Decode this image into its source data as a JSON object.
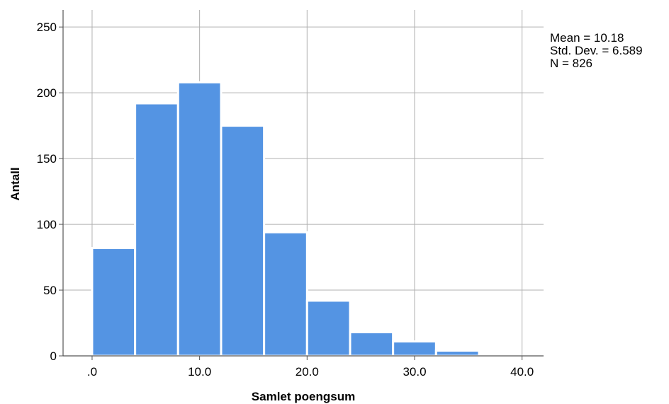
{
  "chart_data": {
    "type": "bar",
    "histogram": true,
    "title": "",
    "xlabel": "Samlet poengsum",
    "ylabel": "Antall",
    "bin_edges": [
      0,
      4,
      8,
      12,
      16,
      20,
      24,
      28,
      32,
      36
    ],
    "values": [
      82,
      192,
      208,
      175,
      94,
      42,
      18,
      11,
      4
    ],
    "xlim": [
      -2.7,
      42
    ],
    "ylim": [
      0,
      263
    ],
    "x_ticks": [
      0,
      10,
      20,
      30,
      40
    ],
    "x_tick_labels": [
      ".0",
      "10.0",
      "20.0",
      "30.0",
      "40.0"
    ],
    "y_ticks": [
      0,
      50,
      100,
      150,
      200,
      250
    ],
    "y_tick_labels": [
      "0",
      "50",
      "100",
      "150",
      "200",
      "250"
    ],
    "grid": true,
    "bar_color": "#5494e3",
    "grid_color": "#b0b0b0",
    "stats": {
      "mean": "Mean = 10.18",
      "std": "Std. Dev. = 6.589",
      "n": "N = 826"
    }
  }
}
